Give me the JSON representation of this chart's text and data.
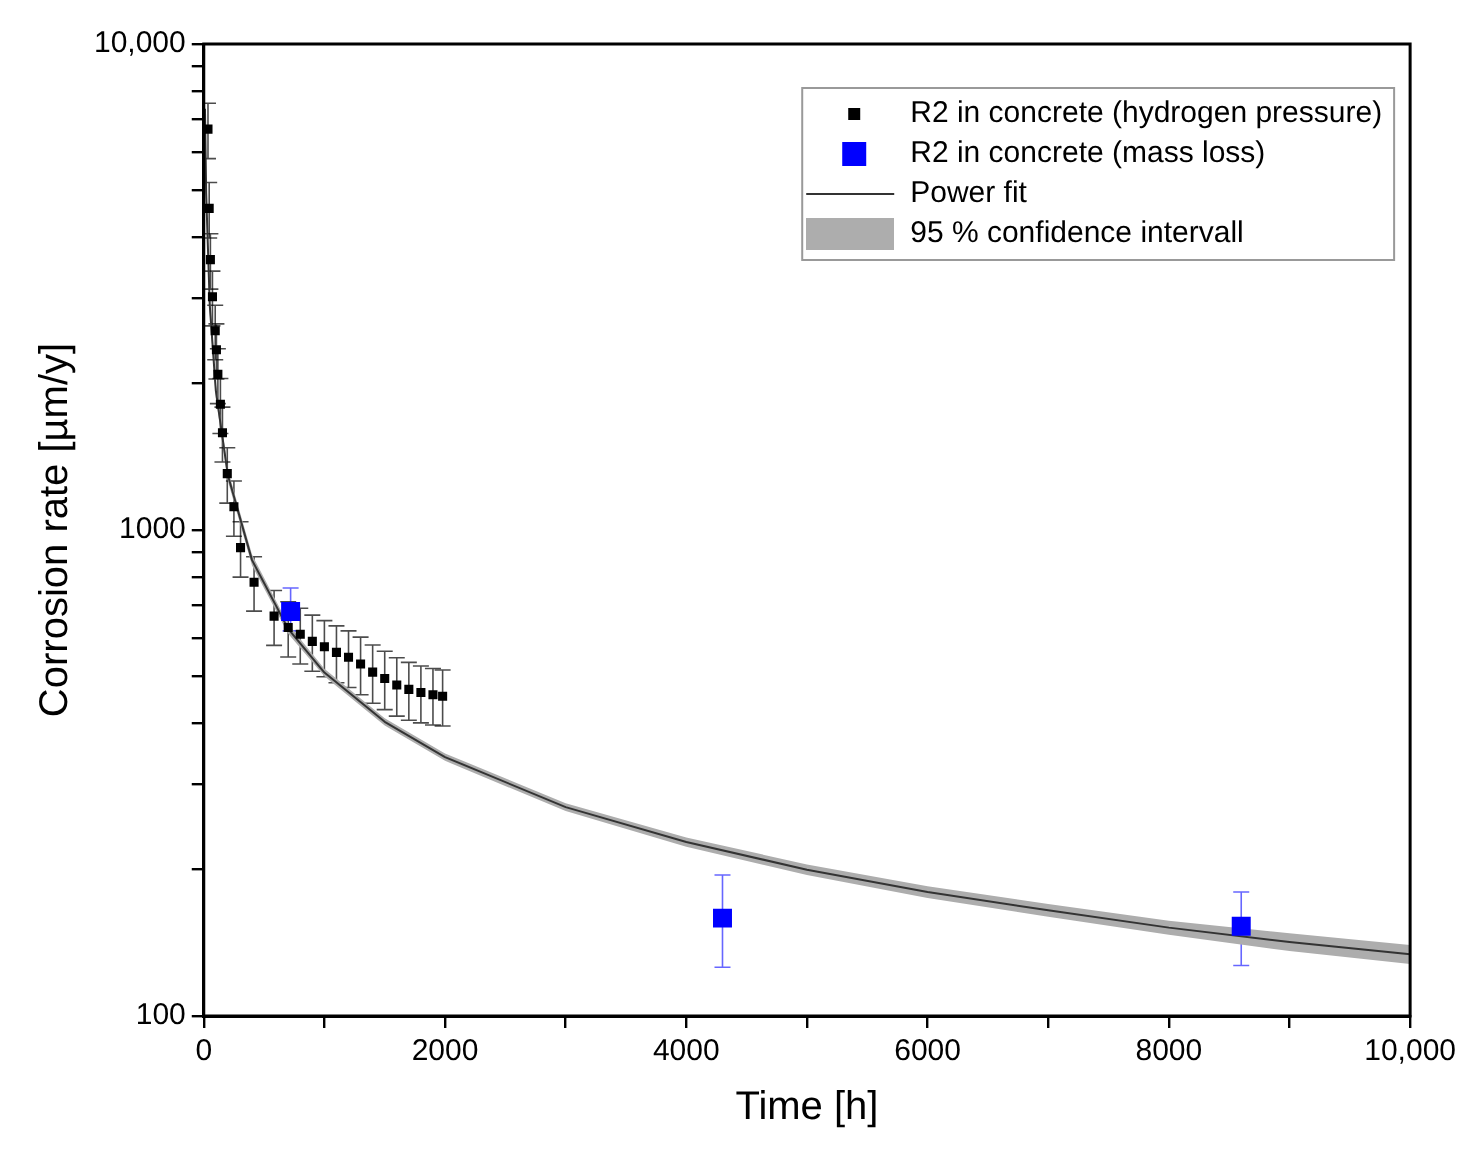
{
  "chart_data": {
    "type": "scatter",
    "xlabel": "Time [h]",
    "ylabel": "Corrosion rate [µm/y]",
    "log": "y",
    "grid": false,
    "legend": "top right",
    "annotations": [
      "95 % confidence intervall"
    ],
    "xlim": [
      0,
      10000
    ],
    "xticks": [
      0,
      {
        "value": 1000,
        "label": null
      },
      2000,
      {
        "value": 3000,
        "label": null
      },
      4000,
      {
        "value": 5000,
        "label": null
      },
      6000,
      {
        "value": 7000,
        "label": null
      },
      8000,
      {
        "value": 9000,
        "label": null
      },
      {
        "value": 10000,
        "label": "10,000"
      }
    ],
    "ylim": [
      100,
      10000
    ],
    "yticks": [
      100,
      {
        "value": 200,
        "label": null
      },
      {
        "value": 300,
        "label": null
      },
      {
        "value": 400,
        "label": null
      },
      {
        "value": 500,
        "label": null
      },
      {
        "value": 600,
        "label": null
      },
      {
        "value": 700,
        "label": null
      },
      {
        "value": 800,
        "label": null
      },
      {
        "value": 900,
        "label": null
      },
      1000,
      {
        "value": 2000,
        "label": null
      },
      {
        "value": 3000,
        "label": null
      },
      {
        "value": 4000,
        "label": null
      },
      {
        "value": 5000,
        "label": null
      },
      {
        "value": 6000,
        "label": null
      },
      {
        "value": 7000,
        "label": null
      },
      {
        "value": 8000,
        "label": null
      },
      {
        "value": 9000,
        "label": null
      },
      {
        "value": 10000,
        "label": "10,000"
      }
    ],
    "series": [
      {
        "name": "R2 in concrete (hydrogen pressure)",
        "marker": "square",
        "color": "#000000",
        "x": [
          35,
          45,
          55,
          72,
          95,
          105,
          117,
          138,
          155,
          195,
          250,
          305,
          417,
          583,
          700,
          800,
          900,
          1000,
          1100,
          1200,
          1300,
          1400,
          1500,
          1600,
          1700,
          1800,
          1900,
          1980
        ],
        "values": [
          6680,
          4590,
          3600,
          3020,
          2570,
          2350,
          2090,
          1815,
          1585,
          1306,
          1116,
          920,
          781,
          665,
          630,
          610,
          590,
          575,
          560,
          547,
          530,
          510,
          495,
          480,
          470,
          463,
          458,
          455
        ],
        "errors": [
          870,
          600,
          470,
          390,
          330,
          305,
          270,
          235,
          205,
          170,
          145,
          120,
          100,
          86,
          82,
          80,
          78,
          76,
          75,
          73,
          72,
          70,
          68,
          66,
          64,
          62,
          61,
          60
        ]
      },
      {
        "name": "R2 in concrete (mass loss)",
        "marker": "square",
        "color": "#0000ff",
        "x": [
          720,
          4300,
          8600
        ],
        "values": [
          680,
          159,
          153
        ],
        "errors": [
          [
            620,
            760
          ],
          [
            126,
            195
          ],
          [
            127,
            180
          ]
        ]
      },
      {
        "name": "Power fit",
        "type": "line",
        "color": "#333333",
        "marker": "none",
        "x": [
          10,
          20,
          50,
          100,
          200,
          400,
          700,
          1000,
          1500,
          2000,
          3000,
          4000,
          5000,
          6000,
          7000,
          8000,
          9000,
          10000
        ],
        "values": [
          7360,
          4930,
          2895,
          1936,
          1296,
          867,
          626,
          509,
          403,
          341,
          269,
          228,
          200,
          180,
          165,
          152,
          142,
          134
        ],
        "lower": [
          7000,
          4700,
          2780,
          1870,
          1260,
          845,
          612,
          500,
          396,
          335,
          264,
          223,
          195,
          175,
          160,
          147,
          136,
          128
        ],
        "upper": [
          7700,
          5150,
          3010,
          2000,
          1330,
          890,
          640,
          518,
          410,
          347,
          274,
          233,
          205,
          185,
          170,
          157,
          148,
          140
        ]
      }
    ]
  }
}
